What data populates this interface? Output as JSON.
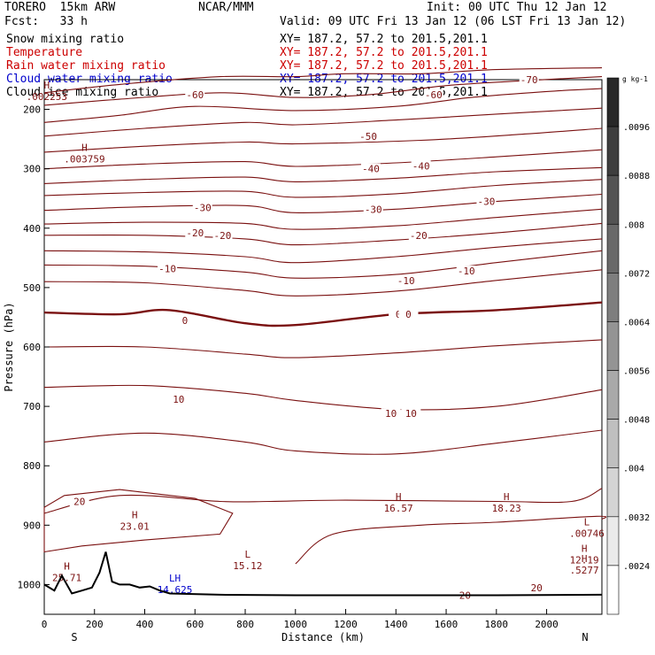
{
  "header": {
    "model": "TORERO  15km ARW",
    "fcst": "Fcst:   33 h",
    "center": "NCAR/MMM",
    "init": "Init: 00 UTC Thu 12 Jan 12",
    "valid": "Valid: 09 UTC Fri 13 Jan 12 (06 LST Fri 13 Jan 12)"
  },
  "fields": [
    {
      "name": "Snow mixing ratio",
      "xy": "XY= 187.2, 57.2 to 201.5,201.1",
      "color": "#000000"
    },
    {
      "name": "Temperature",
      "xy": "XY= 187.2, 57.2 to 201.5,201.1",
      "color": "#cc0000"
    },
    {
      "name": "Rain water mixing ratio",
      "xy": "XY= 187.2, 57.2 to 201.5,201.1",
      "color": "#cc0000"
    },
    {
      "name": "Cloud water mixing ratio",
      "xy": "XY= 187.2, 57.2 to 201.5,201.1",
      "color": "#0000cc"
    },
    {
      "name": "Cloud ice mixing ratio",
      "xy": "XY= 187.2, 57.2 to 201.5,201.1",
      "color": "#000000"
    }
  ],
  "chart_data": {
    "type": "contour-cross-section",
    "xlabel": "Distance (km)",
    "ylabel": "Pressure (hPa)",
    "xlim": [
      0,
      2220
    ],
    "ylim": [
      1050,
      150
    ],
    "x_ticks": [
      0,
      200,
      400,
      600,
      800,
      1000,
      1200,
      1400,
      1600,
      1800,
      2000
    ],
    "y_ticks": [
      200,
      300,
      400,
      500,
      600,
      700,
      800,
      900,
      1000
    ],
    "endpoints": {
      "left": "S",
      "right": "N"
    },
    "contour_color": "#7a1010",
    "terrain_color": "#000000",
    "temperature_contours": [
      {
        "value": -70,
        "pts": [
          [
            0,
            172
          ],
          [
            300,
            158
          ],
          [
            700,
            145
          ],
          [
            1000,
            145
          ],
          [
            1200,
            140
          ],
          [
            1500,
            140
          ],
          [
            1800,
            133
          ],
          [
            2220,
            130
          ]
        ]
      },
      {
        "value": -65,
        "pts": [
          [
            0,
            193
          ],
          [
            300,
            183
          ],
          [
            700,
            172
          ],
          [
            1000,
            180
          ],
          [
            1300,
            175
          ],
          [
            1600,
            160
          ],
          [
            1900,
            152
          ],
          [
            2220,
            145
          ]
        ]
      },
      {
        "value": -60,
        "pts": [
          [
            0,
            222
          ],
          [
            300,
            210
          ],
          [
            600,
            195
          ],
          [
            1000,
            202
          ],
          [
            1400,
            195
          ],
          [
            1700,
            180
          ],
          [
            2000,
            170
          ],
          [
            2220,
            165
          ]
        ]
      },
      {
        "value": -55,
        "pts": [
          [
            0,
            245
          ],
          [
            400,
            232
          ],
          [
            800,
            222
          ],
          [
            1000,
            226
          ],
          [
            1400,
            218
          ],
          [
            1800,
            208
          ],
          [
            2220,
            198
          ]
        ]
      },
      {
        "value": -50,
        "pts": [
          [
            0,
            272
          ],
          [
            400,
            262
          ],
          [
            800,
            255
          ],
          [
            1000,
            258
          ],
          [
            1500,
            252
          ],
          [
            1900,
            242
          ],
          [
            2220,
            232
          ]
        ]
      },
      {
        "value": -45,
        "pts": [
          [
            0,
            300
          ],
          [
            400,
            292
          ],
          [
            800,
            288
          ],
          [
            1000,
            296
          ],
          [
            1400,
            290
          ],
          [
            1800,
            280
          ],
          [
            2220,
            268
          ]
        ]
      },
      {
        "value": -40,
        "pts": [
          [
            0,
            325
          ],
          [
            400,
            318
          ],
          [
            800,
            314
          ],
          [
            1000,
            322
          ],
          [
            1400,
            316
          ],
          [
            1800,
            305
          ],
          [
            2220,
            298
          ]
        ]
      },
      {
        "value": -35,
        "pts": [
          [
            0,
            345
          ],
          [
            400,
            340
          ],
          [
            800,
            338
          ],
          [
            1000,
            348
          ],
          [
            1400,
            342
          ],
          [
            1800,
            328
          ],
          [
            2220,
            318
          ]
        ]
      },
      {
        "value": -30,
        "pts": [
          [
            0,
            370
          ],
          [
            400,
            364
          ],
          [
            800,
            362
          ],
          [
            1000,
            374
          ],
          [
            1400,
            368
          ],
          [
            1800,
            355
          ],
          [
            2220,
            343
          ]
        ]
      },
      {
        "value": -25,
        "pts": [
          [
            0,
            393
          ],
          [
            400,
            390
          ],
          [
            800,
            392
          ],
          [
            1000,
            402
          ],
          [
            1400,
            396
          ],
          [
            1800,
            382
          ],
          [
            2220,
            368
          ]
        ]
      },
      {
        "value": -20,
        "pts": [
          [
            0,
            412
          ],
          [
            400,
            412
          ],
          [
            800,
            418
          ],
          [
            1000,
            428
          ],
          [
            1400,
            420
          ],
          [
            1800,
            408
          ],
          [
            2220,
            392
          ]
        ]
      },
      {
        "value": -15,
        "pts": [
          [
            0,
            438
          ],
          [
            400,
            440
          ],
          [
            800,
            448
          ],
          [
            1000,
            458
          ],
          [
            1400,
            448
          ],
          [
            1800,
            432
          ],
          [
            2220,
            418
          ]
        ]
      },
      {
        "value": -10,
        "pts": [
          [
            0,
            462
          ],
          [
            400,
            464
          ],
          [
            800,
            474
          ],
          [
            1000,
            484
          ],
          [
            1400,
            478
          ],
          [
            1800,
            458
          ],
          [
            2220,
            438
          ]
        ]
      },
      {
        "value": -5,
        "pts": [
          [
            0,
            490
          ],
          [
            400,
            492
          ],
          [
            800,
            505
          ],
          [
            1000,
            514
          ],
          [
            1400,
            506
          ],
          [
            1800,
            488
          ],
          [
            2220,
            470
          ]
        ]
      },
      {
        "value": 0,
        "pts": [
          [
            0,
            542
          ],
          [
            300,
            545
          ],
          [
            500,
            538
          ],
          [
            800,
            560
          ],
          [
            1000,
            563
          ],
          [
            1400,
            545
          ],
          [
            1800,
            538
          ],
          [
            2220,
            525
          ]
        ]
      },
      {
        "value": 5,
        "pts": [
          [
            0,
            600
          ],
          [
            400,
            600
          ],
          [
            800,
            612
          ],
          [
            1000,
            618
          ],
          [
            1400,
            610
          ],
          [
            1800,
            598
          ],
          [
            2220,
            588
          ]
        ]
      },
      {
        "value": 10,
        "pts": [
          [
            0,
            668
          ],
          [
            400,
            665
          ],
          [
            800,
            678
          ],
          [
            1000,
            690
          ],
          [
            1400,
            705
          ],
          [
            1800,
            700
          ],
          [
            2220,
            672
          ]
        ]
      },
      {
        "value": 15,
        "pts": [
          [
            0,
            760
          ],
          [
            400,
            745
          ],
          [
            800,
            760
          ],
          [
            1000,
            775
          ],
          [
            1400,
            780
          ],
          [
            1800,
            762
          ],
          [
            2220,
            740
          ]
        ]
      },
      {
        "value": 20,
        "pts": [
          [
            0,
            880
          ],
          [
            300,
            850
          ],
          [
            700,
            860
          ],
          [
            900,
            860
          ],
          [
            1200,
            858
          ],
          [
            1800,
            860
          ],
          [
            2100,
            860
          ],
          [
            2220,
            838
          ]
        ]
      }
    ],
    "warm_pool_contour": {
      "value": 20,
      "pts": [
        [
          0,
          945
        ],
        [
          150,
          935
        ],
        [
          400,
          925
        ],
        [
          700,
          915
        ],
        [
          750,
          880
        ],
        [
          600,
          855
        ],
        [
          300,
          840
        ],
        [
          80,
          850
        ],
        [
          0,
          870
        ]
      ]
    },
    "south_contour": {
      "value": 20,
      "pts": [
        [
          1000,
          965
        ],
        [
          1150,
          915
        ],
        [
          1500,
          900
        ],
        [
          1800,
          895
        ],
        [
          2200,
          885
        ],
        [
          2220,
          890
        ]
      ]
    },
    "terrain": [
      [
        0,
        1000
      ],
      [
        40,
        1010
      ],
      [
        70,
        985
      ],
      [
        110,
        1015
      ],
      [
        150,
        1010
      ],
      [
        190,
        1005
      ],
      [
        220,
        980
      ],
      [
        245,
        945
      ],
      [
        270,
        995
      ],
      [
        300,
        1000
      ],
      [
        340,
        1000
      ],
      [
        380,
        1005
      ],
      [
        420,
        1003
      ],
      [
        460,
        1010
      ],
      [
        500,
        1015
      ],
      [
        700,
        1017
      ],
      [
        1000,
        1018
      ],
      [
        1400,
        1018
      ],
      [
        1800,
        1018
      ],
      [
        2220,
        1017
      ]
    ],
    "labels": [
      {
        "text": "-70",
        "x": 1930,
        "y": 150
      },
      {
        "text": "-60",
        "x": 600,
        "y": 175
      },
      {
        "text": "-60",
        "x": 1550,
        "y": 175
      },
      {
        "text": "-50",
        "x": 1290,
        "y": 245
      },
      {
        "text": "-40",
        "x": 1300,
        "y": 300
      },
      {
        "text": "-40",
        "x": 1500,
        "y": 295
      },
      {
        "text": "-30",
        "x": 630,
        "y": 365
      },
      {
        "text": "-30",
        "x": 1310,
        "y": 368
      },
      {
        "text": "-30",
        "x": 1760,
        "y": 355
      },
      {
        "text": "-20",
        "x": 600,
        "y": 408
      },
      {
        "text": "-20",
        "x": 710,
        "y": 412
      },
      {
        "text": "-20",
        "x": 1490,
        "y": 412
      },
      {
        "text": "-10",
        "x": 490,
        "y": 468
      },
      {
        "text": "-10",
        "x": 1440,
        "y": 488
      },
      {
        "text": "-10",
        "x": 1680,
        "y": 472
      },
      {
        "text": "0",
        "x": 560,
        "y": 555
      },
      {
        "text": "0",
        "x": 1410,
        "y": 545
      },
      {
        "text": "0",
        "x": 1450,
        "y": 545
      },
      {
        "text": "10",
        "x": 535,
        "y": 688
      },
      {
        "text": "10",
        "x": 1380,
        "y": 712
      },
      {
        "text": "10",
        "x": 1460,
        "y": 712
      },
      {
        "text": "20",
        "x": 140,
        "y": 860
      },
      {
        "text": "20",
        "x": 1675,
        "y": 1018
      },
      {
        "text": "20",
        "x": 1960,
        "y": 1005
      }
    ],
    "extrema": [
      {
        "mark": "H",
        "x": 10,
        "y": 165,
        "value": ".002253"
      },
      {
        "mark": "H",
        "x": 160,
        "y": 270,
        "value": ".003759"
      },
      {
        "mark": "H",
        "x": 360,
        "y": 888,
        "value": "23.01"
      },
      {
        "mark": "H",
        "x": 90,
        "y": 975,
        "value": "25.71"
      },
      {
        "mark": "LH",
        "x": 520,
        "y": 995,
        "value": "14.625"
      },
      {
        "mark": "L",
        "x": 810,
        "y": 955,
        "value": "15.12"
      },
      {
        "mark": "H",
        "x": 1410,
        "y": 858,
        "value": "16.57"
      },
      {
        "mark": "H",
        "x": 1840,
        "y": 858,
        "value": "18.23"
      },
      {
        "mark": "L",
        "x": 2160,
        "y": 900,
        "value": ".00746"
      },
      {
        "mark": "H",
        "x": 2150,
        "y": 945,
        "value": "12.19"
      },
      {
        "mark": "H",
        "x": 2150,
        "y": 962,
        "value": ".5277"
      }
    ],
    "colorbar": {
      "unit": "g kg-1",
      "ticks": [
        ".0024",
        ".0032",
        ".004",
        ".0048",
        ".0056",
        ".0064",
        ".0072",
        ".008",
        ".0088",
        ".0096"
      ]
    }
  }
}
